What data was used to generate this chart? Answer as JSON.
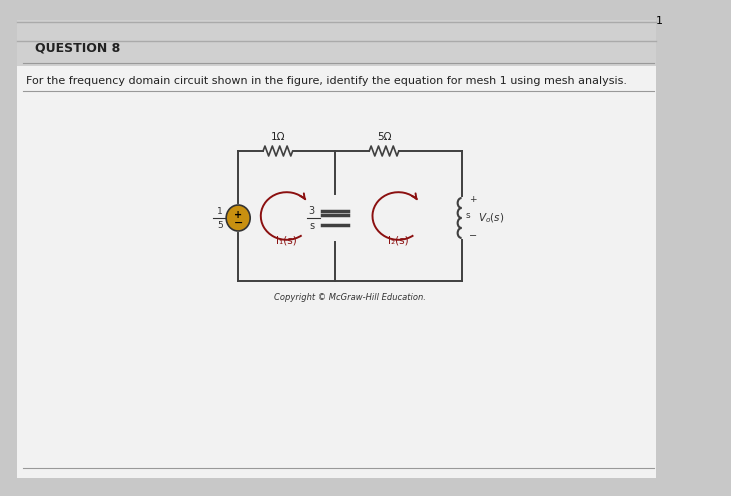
{
  "title": "QUESTION 8",
  "question_text": "For the frequency domain circuit shown in the figure, identify the equation for mesh 1 using mesh analysis.",
  "bg_color": "#c8c8c8",
  "page_bg": "#e8e8e8",
  "white_panel_bg": "#f2f2f2",
  "circuit": {
    "source_label_num": "1",
    "source_label_den": "5",
    "r1_label": "1Ω",
    "r2_label": "5Ω",
    "cap_label_num": "3",
    "cap_label_den": "s",
    "ind_label": "s",
    "vo_label": "V₀(s)",
    "mesh1_label": "I₁(s)",
    "mesh2_label": "I₂(s)",
    "copyright": "Copyright © McGraw-Hill Education.",
    "source_color": "#c89010",
    "wire_color": "#404040",
    "mesh_color": "#8b1010",
    "plus_sign": "+",
    "minus_sign": "−"
  }
}
